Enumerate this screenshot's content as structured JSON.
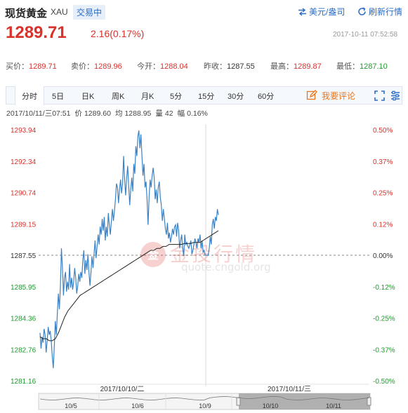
{
  "header": {
    "title": "现货黄金",
    "symbol": "XAU",
    "status_badge": "交易中",
    "unit_link": "美元/盎司",
    "refresh_link": "刷新行情",
    "price": "1289.71",
    "change": "2.16(0.17%)",
    "timestamp": "2017-10-11 07:52:58"
  },
  "stats": [
    {
      "label": "买价：",
      "value": "1289.71",
      "tone": "up"
    },
    {
      "label": "卖价：",
      "value": "1289.96",
      "tone": "up"
    },
    {
      "label": "今开：",
      "value": "1288.04",
      "tone": "up"
    },
    {
      "label": "昨收：",
      "value": "1287.55",
      "tone": "flat"
    },
    {
      "label": "最高：",
      "value": "1289.87",
      "tone": "up"
    },
    {
      "label": "最低：",
      "value": "1287.10",
      "tone": "down"
    }
  ],
  "tabs": [
    "分时",
    "5日",
    "日K",
    "周K",
    "月K",
    "5分",
    "15分",
    "30分",
    "60分"
  ],
  "active_tab": "分时",
  "comment_button": "我要评论",
  "info": {
    "datetime": "2017/10/11/三07:51",
    "price_label": "价",
    "price": "1289.60",
    "avg_label": "均",
    "avg": "1288.95",
    "vol_label": "量",
    "vol": "42",
    "amp_label": "幅",
    "amp": "0.16%"
  },
  "watermark": {
    "text": "金投行情",
    "url": "quote.cngold.org"
  },
  "navigator": {
    "labels": [
      "10/5",
      "10/6",
      "10/9",
      "10/10",
      "10/11"
    ]
  },
  "colors": {
    "up": "#d9312b",
    "down": "#1f9a2f",
    "price_line": "#3b82c4",
    "avg_line": "#222222",
    "link": "#2b6cc4"
  },
  "chart_data": {
    "type": "line",
    "ylim": [
      1281.16,
      1293.94
    ],
    "baseline": 1287.55,
    "y_ticks": [
      "1293.94",
      "1292.34",
      "1290.74",
      "1289.15",
      "1287.55",
      "1285.95",
      "1284.36",
      "1282.76",
      "1281.16"
    ],
    "pct_ticks": [
      "0.50%",
      "0.37%",
      "0.25%",
      "0.12%",
      "0.00%",
      "-0.12%",
      "-0.25%",
      "-0.37%",
      "-0.50%"
    ],
    "x_labels": [
      "2017/10/10/二",
      "2017/10/11/三"
    ],
    "series": [
      {
        "values": [
          1283.6,
          1282.8,
          1283.4,
          1283.1,
          1283.8,
          1283.5,
          1282.6,
          1283.2,
          1283.9,
          1283.5,
          1283.7,
          1283.2,
          1282.4,
          1281.8,
          1282.9,
          1284.2,
          1283.5,
          1284.6,
          1285.6,
          1284.8,
          1286.0,
          1287.9,
          1286.9,
          1285.5,
          1286.4,
          1286.7,
          1285.7,
          1286.2,
          1285.8,
          1287.1,
          1285.9,
          1286.4,
          1285.8,
          1286.2,
          1286.9,
          1286.4,
          1285.6,
          1286.0,
          1286.6,
          1286.2,
          1286.7,
          1286.4,
          1287.3,
          1287.8,
          1286.6,
          1287.3,
          1286.8,
          1287.6,
          1286.7,
          1286.0,
          1286.7,
          1287.5,
          1286.9,
          1287.6,
          1288.3,
          1287.4,
          1288.0,
          1288.6,
          1288.1,
          1289.0,
          1288.6,
          1289.4,
          1288.8,
          1289.5,
          1288.3,
          1289.0,
          1288.5,
          1289.7,
          1289.1,
          1288.6,
          1289.3,
          1289.9,
          1289.3,
          1289.8,
          1290.4,
          1291.2,
          1291.0,
          1290.2,
          1290.9,
          1291.4,
          1290.7,
          1291.2,
          1292.6,
          1291.4,
          1290.6,
          1291.5,
          1292.1,
          1291.1,
          1290.1,
          1290.9,
          1291.5,
          1290.8,
          1292.2,
          1291.7,
          1293.1,
          1292.6,
          1293.6,
          1293.9,
          1293.0,
          1293.7,
          1292.6,
          1291.6,
          1292.2,
          1291.0,
          1291.3,
          1290.4,
          1289.1,
          1290.5,
          1291.4,
          1291.0,
          1291.6,
          1292.0,
          1291.5,
          1290.4,
          1290.9,
          1290.2,
          1291.0,
          1291.3,
          1290.5,
          1290.1,
          1289.3,
          1289.9,
          1289.4,
          1288.9,
          1288.6,
          1289.2,
          1288.4,
          1288.7,
          1288.2,
          1288.5,
          1288.9,
          1288.6,
          1289.0,
          1289.1,
          1288.5,
          1289.2,
          1288.8,
          1287.9,
          1288.3,
          1288.6,
          1287.9,
          1287.5,
          1288.6,
          1288.1,
          1288.2,
          1288.0,
          1287.9,
          1288.1,
          1288.3,
          1287.6,
          1287.8,
          1288.1,
          1288.4,
          1288.2,
          1287.9,
          1288.4,
          1288.2,
          1288.6,
          1287.9,
          1288.3,
          1287.7,
          1287.8,
          1287.55,
          1287.55,
          1287.55,
          1287.55,
          1287.9,
          1288.5,
          1288.1,
          1289.1,
          1289.4,
          1288.9,
          1289.5,
          1289.3,
          1289.9,
          1289.6
        ]
      },
      {
        "values": [
          1283.4,
          1283.3,
          1283.3,
          1283.2,
          1283.2,
          1283.3,
          1283.6,
          1284.0,
          1284.4,
          1284.7,
          1284.9,
          1285.1,
          1285.3,
          1285.5,
          1285.6,
          1285.7,
          1285.8,
          1285.9,
          1286.0,
          1286.1,
          1286.2,
          1286.3,
          1286.4,
          1286.5,
          1286.6,
          1286.7,
          1286.8,
          1286.9,
          1287.0,
          1287.1,
          1287.2,
          1287.3,
          1287.4,
          1287.5,
          1287.6,
          1287.7,
          1287.8,
          1287.8,
          1287.9,
          1287.9,
          1288.0,
          1288.0,
          1288.1,
          1288.1,
          1288.1,
          1288.1,
          1288.1,
          1288.15,
          1288.15,
          1288.15,
          1288.2,
          1288.2,
          1288.2,
          1288.3,
          1288.4,
          1288.5,
          1288.6,
          1288.7,
          1288.8
        ]
      }
    ]
  }
}
